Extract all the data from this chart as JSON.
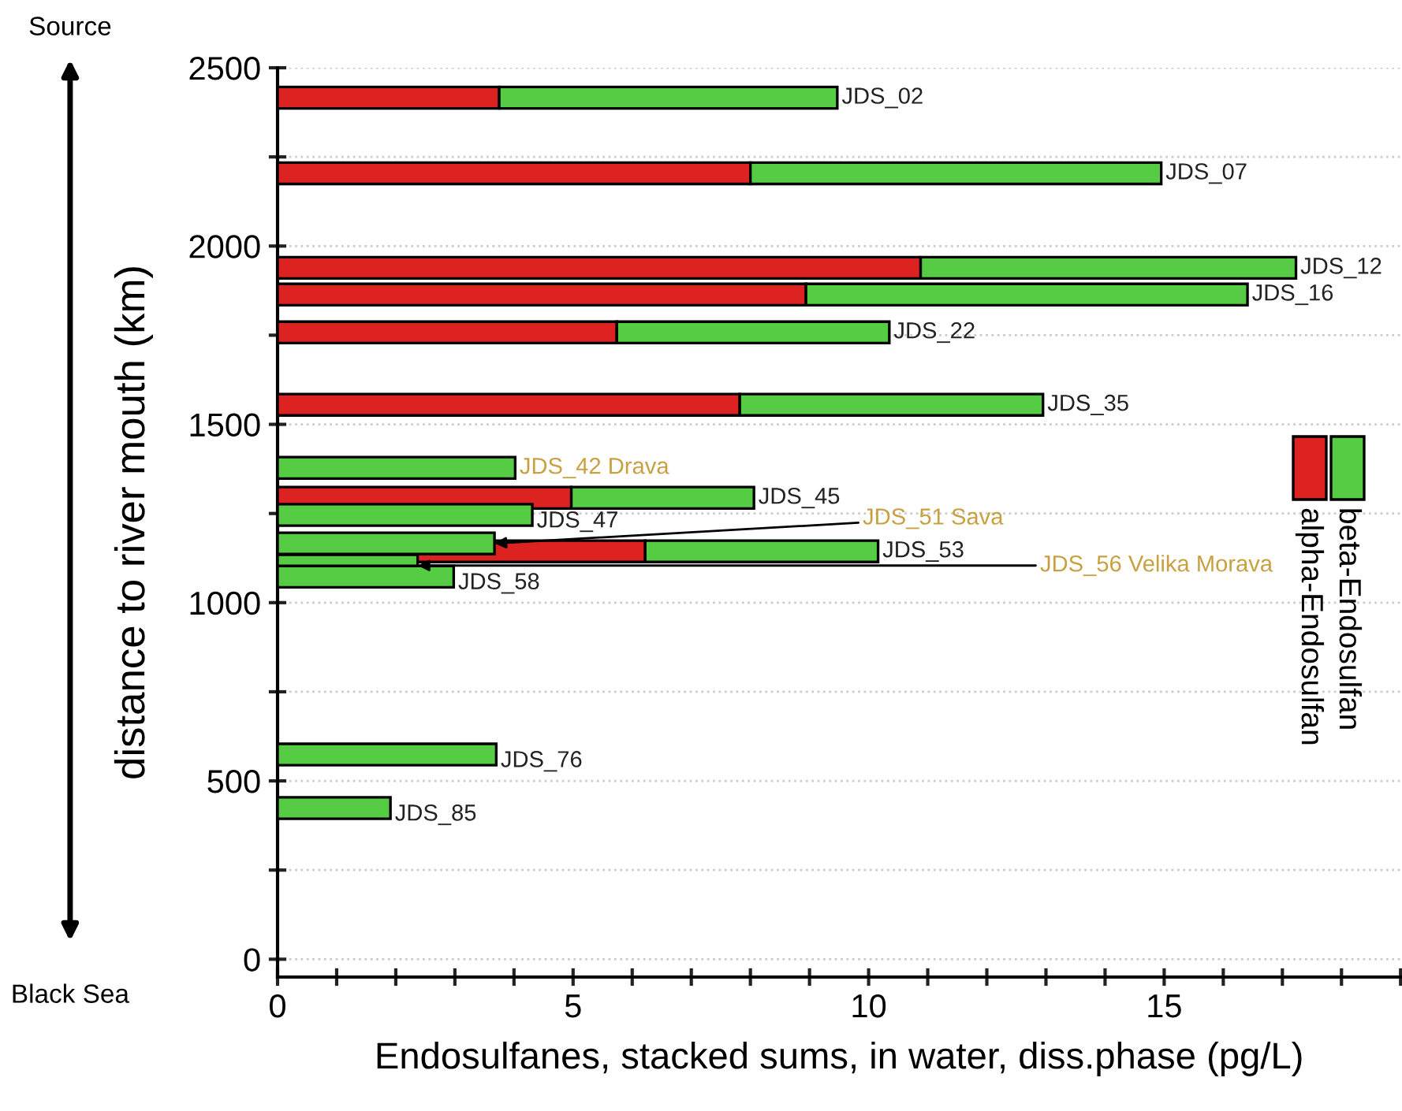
{
  "chart_data": {
    "type": "bar",
    "orientation": "horizontal",
    "stacked": true,
    "xlabel": "Endosulfanes, stacked sums, in water, diss.phase (pg/L)",
    "ylabel": "distance to river mouth (km)",
    "x": [
      2416,
      2204,
      1939,
      1864,
      1758,
      1555,
      1378,
      1294,
      1246,
      1166,
      1144,
      1104,
      1073,
      574,
      424
    ],
    "series": [
      {
        "name": "alpha-Endosulfan",
        "color": "#dd2222",
        "values": [
          3.75,
          8.0,
          10.88,
          8.94,
          5.74,
          7.82,
          null,
          4.97,
          null,
          null,
          6.22,
          null,
          null,
          null,
          null
        ]
      },
      {
        "name": "beta-Endosulfan",
        "color": "#55cc44",
        "values": [
          5.72,
          6.95,
          6.35,
          7.47,
          4.61,
          5.13,
          4.02,
          3.09,
          4.31,
          3.67,
          3.94,
          2.37,
          2.98,
          3.7,
          1.91
        ]
      }
    ],
    "xlim": [
      0,
      19
    ],
    "xticks": [
      0,
      {
        "value": 1,
        "label": null
      },
      {
        "value": 2,
        "label": null
      },
      {
        "value": 3,
        "label": null
      },
      {
        "value": 4,
        "label": null
      },
      5,
      {
        "value": 6,
        "label": null
      },
      {
        "value": 7,
        "label": null
      },
      {
        "value": 8,
        "label": null
      },
      {
        "value": 9,
        "label": null
      },
      10,
      {
        "value": 11,
        "label": null
      },
      {
        "value": 12,
        "label": null
      },
      {
        "value": 13,
        "label": null
      },
      {
        "value": 14,
        "label": null
      },
      15,
      {
        "value": 16,
        "label": null
      },
      {
        "value": 17,
        "label": null
      },
      {
        "value": 18,
        "label": null
      },
      {
        "value": 19,
        "label": null
      }
    ],
    "ylim": [
      -50,
      2500
    ],
    "yticks": [
      0,
      {
        "value": 250,
        "label": null
      },
      500,
      {
        "value": 750,
        "label": null
      },
      1000,
      {
        "value": 1250,
        "label": null
      },
      1500,
      {
        "value": 1750,
        "label": null
      },
      2000,
      {
        "value": 2250,
        "label": null
      },
      2500
    ],
    "grid": "y",
    "legend": "right",
    "annotations": [
      "Source",
      "Black Sea",
      {
        "text": "JDS_02",
        "x": 9.47,
        "y": 2416
      },
      {
        "text": "JDS_07",
        "x": 14.95,
        "y": 2204
      },
      {
        "text": "JDS_12",
        "x": 17.23,
        "y": 1939
      },
      {
        "text": "JDS_16",
        "x": 16.41,
        "y": 1864
      },
      {
        "text": "JDS_22",
        "x": 10.35,
        "y": 1758
      },
      {
        "text": "JDS_35",
        "x": 12.95,
        "y": 1555
      },
      {
        "text": "JDS_42 Drava",
        "x": 4.02,
        "y": 1378
      },
      {
        "text": "JDS_45",
        "x": 8.06,
        "y": 1294
      },
      {
        "text": "JDS_47",
        "x": 4.31,
        "y": 1246
      },
      {
        "text": "JDS_51 Sava",
        "x": 3.67,
        "y": 1166
      },
      {
        "text": "JDS_53",
        "x": 10.16,
        "y": 1144
      },
      {
        "text": "JDS_56 Velika Morava",
        "x": 2.37,
        "y": 1104
      },
      {
        "text": "JDS_58",
        "x": 2.98,
        "y": 1073
      },
      {
        "text": "JDS_76",
        "x": 3.7,
        "y": 574
      },
      {
        "text": "JDS_85",
        "x": 1.91,
        "y": 424
      }
    ]
  }
}
